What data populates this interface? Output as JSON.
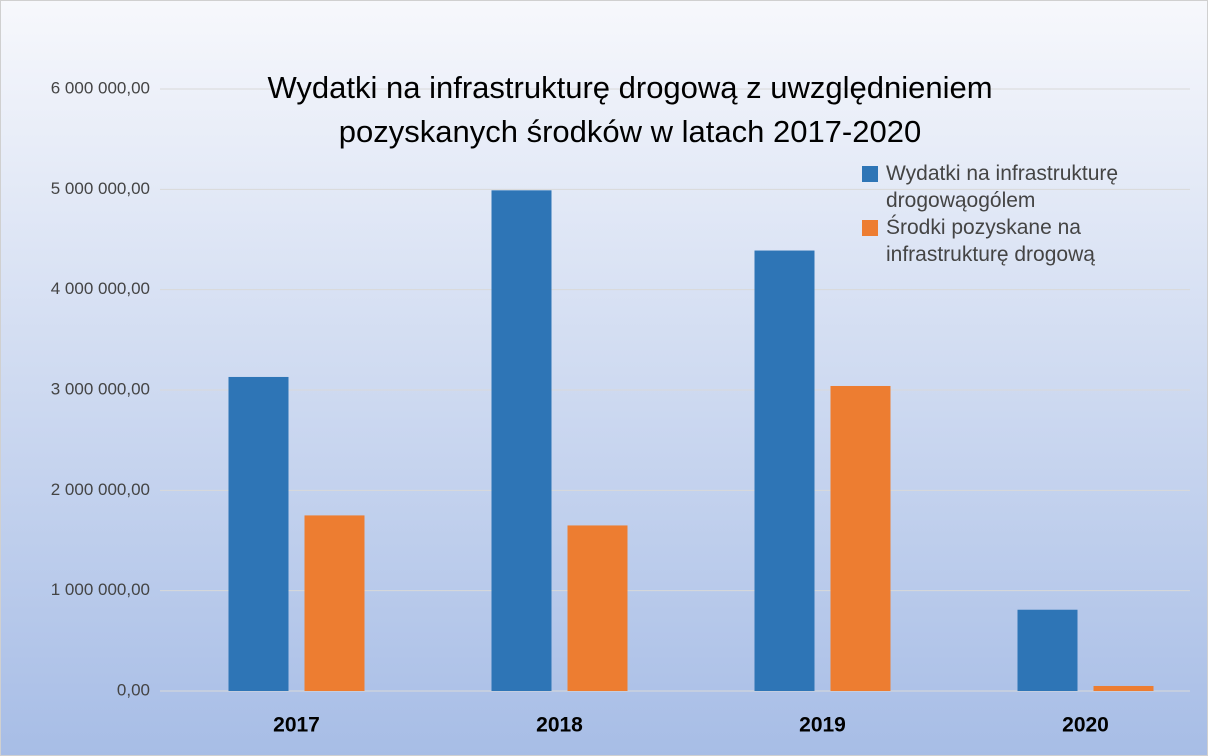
{
  "chart_data": {
    "type": "bar",
    "title": "Wydatki na infrastrukturę drogową z uwzględnieniem pozyskanych środków w latach 2017-2020",
    "categories": [
      "2017",
      "2018",
      "2019",
      "2020"
    ],
    "series": [
      {
        "name": "Wydatki na infrastrukturę drogowąogólem",
        "color": "#2e75b6",
        "values": [
          3130000,
          4990000,
          4390000,
          810000
        ]
      },
      {
        "name": "Środki pozyskane na infrastrukturę drogową",
        "color": "#ed7d31",
        "values": [
          1750000,
          1650000,
          3040000,
          50000
        ]
      }
    ],
    "ylim": [
      0,
      6000000
    ],
    "yticks": [
      {
        "value": 0,
        "label": "0,00"
      },
      {
        "value": 1000000,
        "label": "1 000 000,00"
      },
      {
        "value": 2000000,
        "label": "2 000 000,00"
      },
      {
        "value": 3000000,
        "label": "3 000 000,00"
      },
      {
        "value": 4000000,
        "label": "4 000 000,00"
      },
      {
        "value": 5000000,
        "label": "5 000 000,00"
      },
      {
        "value": 6000000,
        "label": "6 000 000,00"
      }
    ],
    "grid": true,
    "legend": "top-right"
  }
}
